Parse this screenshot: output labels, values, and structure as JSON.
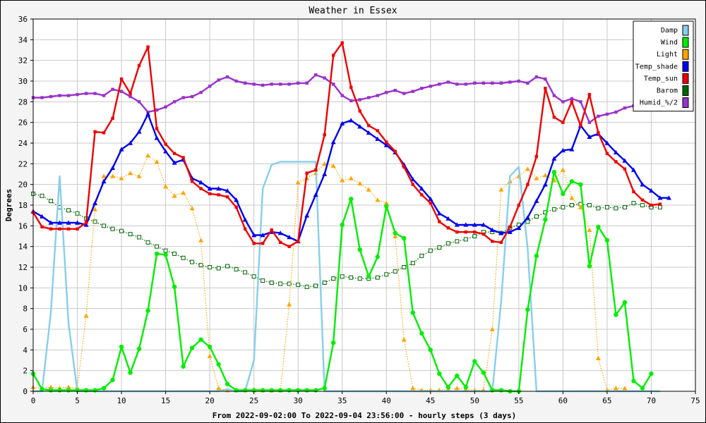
{
  "chart_data": {
    "type": "line",
    "title": "Weather in Essex",
    "xlabel": "From 2022-09-02:00 To 2022-09-04 23:56:00 - hourly steps (3 days)",
    "ylabel": "Degrees",
    "xlim": [
      0,
      75
    ],
    "ylim": [
      0,
      36
    ],
    "xticks": [
      0,
      5,
      10,
      15,
      20,
      25,
      30,
      35,
      40,
      45,
      50,
      55,
      60,
      65,
      70,
      75
    ],
    "yticks": [
      0,
      2,
      4,
      6,
      8,
      10,
      12,
      14,
      16,
      18,
      20,
      22,
      24,
      26,
      28,
      30,
      32,
      34,
      36
    ],
    "grid": true,
    "legend_position": "top-right",
    "series": [
      {
        "name": "Damp",
        "color": "#87ceeb",
        "marker": "none",
        "style": "solid",
        "values": [
          0,
          0,
          7.6,
          20.8,
          6.6,
          0,
          0,
          0,
          0,
          0,
          0,
          0,
          0,
          0,
          0,
          0,
          0,
          0,
          0,
          0,
          0,
          0,
          0.2,
          0,
          0,
          3,
          19.6,
          21.9,
          22.2,
          22.2,
          22.2,
          22.2,
          22.2,
          0,
          0,
          0,
          0,
          0,
          0,
          0,
          0,
          0,
          0,
          0,
          0,
          0,
          0,
          0,
          0,
          0,
          0,
          0,
          0,
          8.7,
          20.8,
          21.7,
          13.8,
          0,
          0,
          0,
          0,
          0,
          0,
          0,
          0,
          0,
          0,
          0,
          0,
          0,
          0,
          0
        ]
      },
      {
        "name": "Wind",
        "color": "#00ee00",
        "marker": "circle",
        "style": "solid",
        "values": [
          1.7,
          0.2,
          0.1,
          0.1,
          0.1,
          0.1,
          0.1,
          0.1,
          0.3,
          1.1,
          4.3,
          1.8,
          4.1,
          7.8,
          13.3,
          13.2,
          10.1,
          2.4,
          4.2,
          5,
          4.3,
          2.6,
          0.7,
          0.1,
          0.1,
          0.1,
          0.1,
          0.1,
          0.1,
          0.1,
          0.1,
          0.1,
          0.1,
          0.3,
          4.7,
          16.1,
          18.6,
          13.7,
          11.1,
          13,
          17.9,
          15.3,
          14.8,
          7.6,
          5.6,
          4,
          1.7,
          0.4,
          1.5,
          0.4,
          2.9,
          1.8,
          0.1,
          0.1,
          0,
          0,
          7.9,
          13.1,
          16.6,
          21.2,
          19.1,
          20.3,
          20,
          12.1,
          15.9,
          14.6,
          7.4,
          8.6,
          1,
          0.3,
          1.7
        ]
      },
      {
        "name": "Light",
        "color": "#ffa500",
        "marker": "triangle",
        "style": "dotted",
        "values": [
          0.4,
          0.3,
          0.4,
          0.3,
          0.4,
          0.3,
          7.3,
          17.6,
          20.8,
          20.8,
          20.6,
          21.1,
          20.8,
          22.8,
          22.2,
          19.8,
          18.9,
          19.2,
          17.7,
          14.6,
          3.4,
          0.3,
          0.1,
          0.1,
          0.1,
          0.1,
          0.1,
          0.1,
          0.1,
          8.4,
          20.2,
          20.6,
          21.1,
          22,
          21.8,
          20.4,
          20.6,
          20.1,
          19.5,
          18.5,
          18.2,
          15,
          5,
          0.3,
          0.1,
          0.1,
          0.1,
          0.2,
          0.3,
          0.2,
          0.1,
          0.1,
          6,
          19.5,
          20.3,
          20.8,
          21.5,
          20.6,
          20.9,
          20.4,
          21.4,
          18.7,
          17.8,
          15.6,
          3.2,
          0.1,
          0.3,
          0.3
        ]
      },
      {
        "name": "Temp_shade",
        "color": "#0000ee",
        "marker": "triangle",
        "style": "solid",
        "values": [
          17.4,
          16.9,
          16.3,
          16.3,
          16.3,
          16.3,
          16.1,
          18.2,
          20.3,
          21.6,
          23.4,
          24,
          25.1,
          26.8,
          24.5,
          23.2,
          22.1,
          22.4,
          20.6,
          20.2,
          19.6,
          19.6,
          19.4,
          18.5,
          16.6,
          15.1,
          15.1,
          15.4,
          15.3,
          14.9,
          14.5,
          17,
          19,
          21,
          24.1,
          25.9,
          26.2,
          25.6,
          25,
          24.4,
          23.8,
          23.1,
          21.9,
          20.5,
          19.6,
          18.6,
          17.2,
          16.7,
          16.1,
          16.1,
          16.1,
          16.1,
          15.6,
          15.3,
          15.4,
          15.8,
          16.8,
          18.4,
          20,
          22.5,
          23.3,
          23.4,
          25.7,
          24.6,
          24.9,
          24,
          23.1,
          22.3,
          21.4,
          20,
          19.4,
          18.7,
          18.7
        ]
      },
      {
        "name": "Temp_sun",
        "color": "#ee0000",
        "marker": "square",
        "style": "solid",
        "values": [
          17.3,
          15.9,
          15.7,
          15.7,
          15.7,
          15.7,
          16.3,
          25.1,
          25,
          26.4,
          30.2,
          28.8,
          31.5,
          33.3,
          25.4,
          23.9,
          23,
          22.6,
          20.3,
          19.6,
          19.1,
          19,
          18.8,
          17.8,
          15.7,
          14.3,
          14.3,
          15.6,
          14.4,
          14,
          14.5,
          21.1,
          21.4,
          24.8,
          32.5,
          33.7,
          29.4,
          27.1,
          25.7,
          25.2,
          24.1,
          23.2,
          21.7,
          20,
          19,
          18.2,
          16.4,
          15.8,
          15.4,
          15.4,
          15.4,
          15.2,
          14.5,
          14.4,
          15.9,
          18,
          20,
          22.7,
          29.3,
          26.5,
          26,
          28,
          25.7,
          28.7,
          25,
          23,
          22.2,
          21.5,
          19.3,
          18.5,
          18,
          18.1
        ]
      },
      {
        "name": "Barom",
        "color": "#006400",
        "marker": "square-open",
        "style": "dotted",
        "values": [
          19.1,
          18.9,
          18.4,
          17.8,
          17.5,
          17.2,
          16.7,
          16.4,
          16,
          15.7,
          15.5,
          15.2,
          14.9,
          14.4,
          14,
          13.6,
          13.3,
          12.9,
          12.5,
          12.2,
          12,
          11.9,
          12.1,
          11.8,
          11.5,
          11.1,
          10.7,
          10.5,
          10.4,
          10.4,
          10.3,
          10.1,
          10.2,
          10.5,
          10.9,
          11.1,
          11,
          10.9,
          10.9,
          11,
          11.3,
          11.6,
          12,
          12.4,
          13.1,
          13.6,
          13.9,
          14.3,
          14.5,
          14.7,
          15,
          15.4,
          15.4,
          15.3,
          15.8,
          16.1,
          16.4,
          16.9,
          17.3,
          17.6,
          17.8,
          18,
          18.1,
          18,
          17.7,
          17.8,
          17.7,
          17.8,
          18.2,
          18,
          17.8,
          17.8
        ]
      },
      {
        "name": "Humid_%/2",
        "color": "#9932cc",
        "marker": "square",
        "style": "solid",
        "values": [
          28.4,
          28.4,
          28.5,
          28.6,
          28.6,
          28.7,
          28.8,
          28.8,
          28.6,
          29.2,
          29,
          28.5,
          28,
          27,
          27.2,
          27.5,
          28,
          28.4,
          28.5,
          28.9,
          29.5,
          30.1,
          30.4,
          30,
          29.8,
          29.7,
          29.6,
          29.7,
          29.7,
          29.7,
          29.8,
          29.8,
          30.6,
          30.3,
          29.7,
          28.6,
          28.1,
          28.2,
          28.4,
          28.6,
          28.9,
          29.1,
          28.8,
          29,
          29.3,
          29.5,
          29.7,
          29.9,
          29.7,
          29.7,
          29.8,
          29.8,
          29.8,
          29.8,
          29.9,
          30,
          29.8,
          30.4,
          30.2,
          28.6,
          28,
          28.3,
          28,
          26,
          26.6,
          26.8,
          27,
          27.4,
          27.6,
          28.6
        ]
      }
    ]
  }
}
